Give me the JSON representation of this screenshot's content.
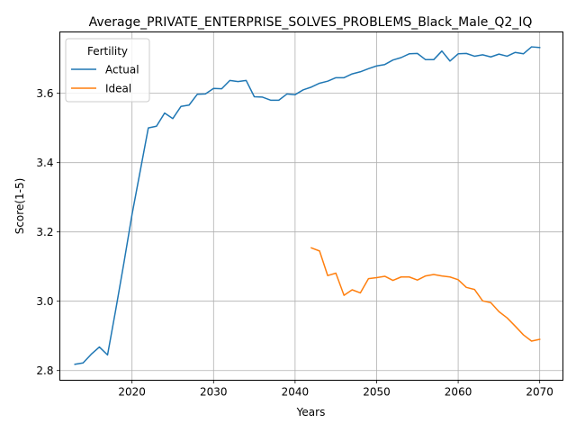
{
  "chart_data": {
    "type": "line",
    "title": "Average_PRIVATE_ENTERPRISE_SOLVES_PROBLEMS_Black_Male_Q2_IQ",
    "xlabel": "Years",
    "ylabel": "Score(1-5)",
    "xlim": [
      2011.15,
      2072.85
    ],
    "ylim": [
      2.772,
      3.777
    ],
    "xticks": [
      2020,
      2030,
      2040,
      2050,
      2060,
      2070
    ],
    "yticks": [
      2.8,
      3.0,
      3.2,
      3.4,
      3.6
    ],
    "grid": true,
    "legend": {
      "title": "Fertility",
      "placement": "top-left"
    },
    "series": [
      {
        "name": "Actual",
        "color": "#1f77b4",
        "x": [
          2013,
          2014,
          2015,
          2016,
          2017,
          2018,
          2019,
          2020,
          2021,
          2022,
          2023,
          2024,
          2025,
          2026,
          2027,
          2028,
          2029,
          2030,
          2031,
          2032,
          2033,
          2034,
          2035,
          2036,
          2037,
          2038,
          2039,
          2040,
          2041,
          2042,
          2043,
          2044,
          2045,
          2046,
          2047,
          2048,
          2049,
          2050,
          2051,
          2052,
          2053,
          2054,
          2055,
          2056,
          2057,
          2058,
          2059,
          2060,
          2061,
          2062,
          2063,
          2064,
          2065,
          2066,
          2067,
          2068,
          2069,
          2070
        ],
        "values": [
          2.818,
          2.822,
          2.847,
          2.868,
          2.845,
          2.975,
          3.11,
          3.25,
          3.375,
          3.5,
          3.505,
          3.543,
          3.527,
          3.562,
          3.566,
          3.597,
          3.598,
          3.614,
          3.613,
          3.637,
          3.634,
          3.637,
          3.59,
          3.589,
          3.58,
          3.58,
          3.598,
          3.596,
          3.61,
          3.618,
          3.629,
          3.635,
          3.645,
          3.645,
          3.656,
          3.662,
          3.671,
          3.679,
          3.683,
          3.696,
          3.703,
          3.714,
          3.715,
          3.697,
          3.697,
          3.722,
          3.693,
          3.714,
          3.715,
          3.707,
          3.711,
          3.705,
          3.713,
          3.707,
          3.718,
          3.714,
          3.734,
          3.732
        ]
      },
      {
        "name": "Ideal",
        "color": "#ff7f0e",
        "x": [
          2042,
          2043,
          2044,
          2045,
          2046,
          2047,
          2048,
          2049,
          2050,
          2051,
          2052,
          2053,
          2054,
          2055,
          2056,
          2057,
          2058,
          2059,
          2060,
          2061,
          2062,
          2063,
          2064,
          2065,
          2066,
          2067,
          2068,
          2069,
          2070
        ],
        "values": [
          3.154,
          3.145,
          3.074,
          3.081,
          3.017,
          3.033,
          3.024,
          3.065,
          3.068,
          3.072,
          3.06,
          3.07,
          3.07,
          3.061,
          3.073,
          3.077,
          3.073,
          3.07,
          3.062,
          3.04,
          3.034,
          3.001,
          2.996,
          2.97,
          2.952,
          2.928,
          2.903,
          2.885,
          2.89
        ]
      }
    ]
  }
}
